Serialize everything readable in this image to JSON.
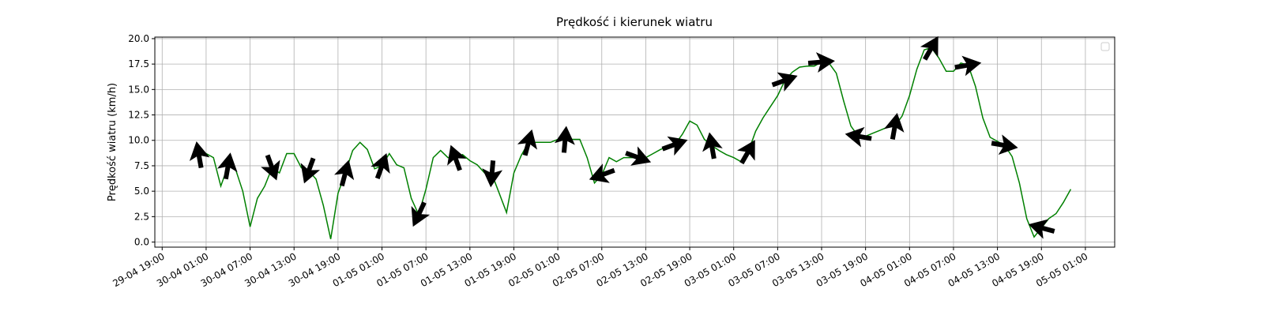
{
  "chart_data": {
    "type": "line",
    "title": "Prędkość i kierunek wiatru",
    "y_label": "Prędkość wiatru (km/h)",
    "grid": true,
    "legend": "upper right",
    "x": [
      "30-04 00:00",
      "30-04 01:00",
      "30-04 02:00",
      "30-04 03:00",
      "30-04 04:00",
      "30-04 05:00",
      "30-04 06:00",
      "30-04 07:00",
      "30-04 08:00",
      "30-04 09:00",
      "30-04 10:00",
      "30-04 11:00",
      "30-04 12:00",
      "30-04 13:00",
      "30-04 14:00",
      "30-04 15:00",
      "30-04 16:00",
      "30-04 17:00",
      "30-04 18:00",
      "30-04 19:00",
      "30-04 20:00",
      "30-04 21:00",
      "30-04 22:00",
      "30-04 23:00",
      "01-05 00:00",
      "01-05 01:00",
      "01-05 02:00",
      "01-05 03:00",
      "01-05 04:00",
      "01-05 05:00",
      "01-05 06:00",
      "01-05 07:00",
      "01-05 08:00",
      "01-05 09:00",
      "01-05 10:00",
      "01-05 11:00",
      "01-05 12:00",
      "01-05 13:00",
      "01-05 14:00",
      "01-05 15:00",
      "01-05 16:00",
      "01-05 17:00",
      "01-05 18:00",
      "01-05 19:00",
      "01-05 20:00",
      "01-05 21:00",
      "01-05 22:00",
      "01-05 23:00",
      "02-05 00:00",
      "02-05 01:00",
      "02-05 02:00",
      "02-05 03:00",
      "02-05 04:00",
      "02-05 05:00",
      "02-05 06:00",
      "02-05 07:00",
      "02-05 08:00",
      "02-05 09:00",
      "02-05 10:00",
      "02-05 11:00",
      "02-05 12:00",
      "02-05 13:00",
      "02-05 14:00",
      "02-05 15:00",
      "02-05 16:00",
      "02-05 17:00",
      "02-05 18:00",
      "02-05 19:00",
      "02-05 20:00",
      "02-05 21:00",
      "02-05 22:00",
      "02-05 23:00",
      "03-05 00:00",
      "03-05 01:00",
      "03-05 02:00",
      "03-05 03:00",
      "03-05 04:00",
      "03-05 05:00",
      "03-05 06:00",
      "03-05 07:00",
      "03-05 08:00",
      "03-05 09:00",
      "03-05 10:00",
      "03-05 11:00",
      "03-05 12:00",
      "03-05 13:00",
      "03-05 14:00",
      "03-05 15:00",
      "03-05 16:00",
      "03-05 17:00",
      "03-05 18:00",
      "03-05 19:00",
      "03-05 20:00",
      "03-05 21:00",
      "03-05 22:00",
      "03-05 23:00",
      "04-05 00:00",
      "04-05 01:00",
      "04-05 02:00",
      "04-05 03:00",
      "04-05 04:00",
      "04-05 05:00",
      "04-05 06:00",
      "04-05 07:00",
      "04-05 08:00",
      "04-05 09:00",
      "04-05 10:00",
      "04-05 11:00",
      "04-05 12:00",
      "04-05 13:00",
      "04-05 14:00",
      "04-05 15:00",
      "04-05 16:00",
      "04-05 17:00",
      "04-05 18:00",
      "04-05 19:00",
      "04-05 20:00",
      "04-05 21:00",
      "04-05 22:00",
      "04-05 23:00"
    ],
    "series": [
      {
        "color": "#008000",
        "values": [
          8.6,
          8.7,
          8.3,
          5.5,
          7.5,
          7.2,
          5.0,
          1.5,
          4.3,
          5.5,
          7.3,
          6.8,
          8.7,
          8.7,
          7.3,
          7.0,
          6.2,
          3.6,
          0.3,
          4.8,
          6.8,
          9.0,
          9.8,
          9.1,
          7.2,
          7.5,
          8.7,
          7.6,
          7.3,
          4.3,
          2.7,
          5.2,
          8.3,
          9.0,
          8.3,
          8.3,
          8.6,
          8.0,
          7.6,
          6.8,
          6.7,
          4.8,
          2.9,
          6.8,
          8.5,
          9.8,
          9.8,
          9.8,
          9.8,
          10.1,
          10.1,
          10.1,
          10.1,
          8.3,
          5.8,
          6.6,
          8.3,
          7.9,
          8.3,
          8.3,
          8.3,
          8.3,
          8.7,
          9.1,
          9.4,
          9.6,
          10.6,
          11.9,
          11.5,
          10.1,
          9.5,
          9.0,
          8.6,
          8.3,
          7.9,
          8.9,
          10.9,
          12.2,
          13.3,
          14.4,
          15.9,
          16.7,
          17.2,
          17.3,
          17.3,
          17.7,
          17.6,
          16.6,
          13.9,
          11.4,
          10.4,
          10.4,
          10.7,
          11.0,
          11.3,
          11.4,
          12.4,
          14.4,
          17.0,
          18.9,
          19.1,
          18.1,
          16.8,
          16.8,
          17.6,
          17.4,
          15.3,
          12.2,
          10.3,
          9.9,
          9.5,
          8.4,
          5.8,
          2.3,
          0.5,
          1.4,
          2.3,
          2.8,
          3.9,
          5.2
        ]
      }
    ],
    "arrows": {
      "color": "#000000",
      "x": [
        "30-04 00:00",
        "30-04 04:00",
        "30-04 10:00",
        "30-04 15:00",
        "30-04 20:00",
        "01-05 01:00",
        "01-05 06:00",
        "01-05 11:00",
        "01-05 16:00",
        "01-05 21:00",
        "02-05 02:00",
        "02-05 07:00",
        "02-05 12:00",
        "02-05 17:00",
        "02-05 22:00",
        "03-05 03:00",
        "03-05 08:00",
        "03-05 13:00",
        "03-05 18:00",
        "03-05 23:00",
        "04-05 04:00",
        "04-05 09:00",
        "04-05 14:00",
        "04-05 19:00"
      ],
      "direction": [
        100,
        80,
        290,
        250,
        75,
        70,
        245,
        110,
        265,
        75,
        85,
        200,
        340,
        20,
        100,
        60,
        20,
        5,
        170,
        80,
        60,
        10,
        350,
        165
      ]
    },
    "xlim": [
      "29-04 18:00",
      "05-05 05:00"
    ],
    "xticks": [
      "29-04 19:00",
      "30-04 01:00",
      "30-04 07:00",
      "30-04 13:00",
      "30-04 19:00",
      "01-05 01:00",
      "01-05 07:00",
      "01-05 13:00",
      "01-05 19:00",
      "02-05 01:00",
      "02-05 07:00",
      "02-05 13:00",
      "02-05 19:00",
      "03-05 01:00",
      "03-05 07:00",
      "03-05 13:00",
      "03-05 19:00",
      "04-05 01:00",
      "04-05 07:00",
      "04-05 13:00",
      "04-05 19:00",
      "05-05 01:00"
    ],
    "ylim": [
      -0.5,
      20.15
    ],
    "yticks": [
      {
        "value": 0,
        "label": "0.0"
      },
      {
        "value": 2.5,
        "label": "2.5"
      },
      {
        "value": 5,
        "label": "5.0"
      },
      {
        "value": 7.5,
        "label": "7.5"
      },
      {
        "value": 10,
        "label": "10.0"
      },
      {
        "value": 12.5,
        "label": "12.5"
      },
      {
        "value": 15,
        "label": "15.0"
      },
      {
        "value": 17.5,
        "label": "17.5"
      },
      {
        "value": 20,
        "label": "20.0"
      }
    ]
  }
}
